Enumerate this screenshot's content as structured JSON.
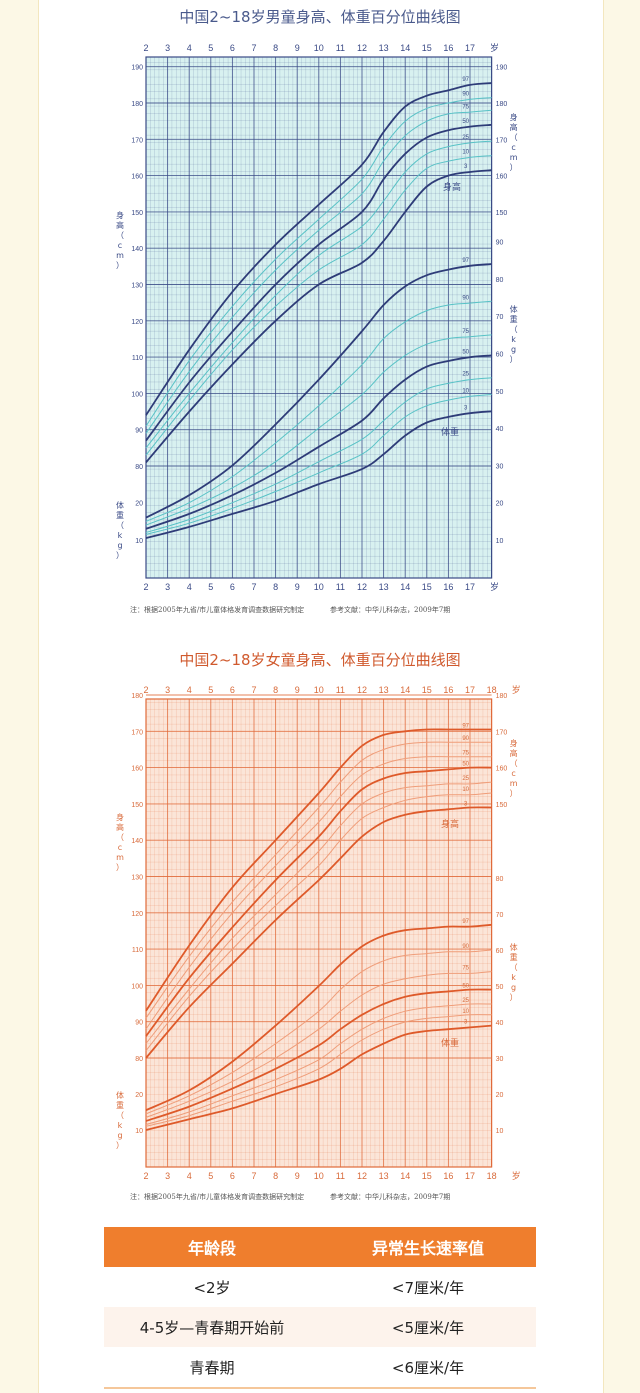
{
  "boy_chart": {
    "title": "中国2~18岁男童身高、体重百分位曲线图",
    "note": "注：根据2005年九省/市儿童体格发育调查数据研究制定",
    "reference": "参考文献：中华儿科杂志，2009年7期",
    "colors": {
      "bg": "#d8f1f0",
      "grid": "#3a4a86",
      "major": "#2e3c78",
      "minor_curve": "#58c2c6",
      "text": "#3a4a86"
    },
    "height_label": "身高",
    "weight_label": "体重",
    "axis_height_label": "身高（cm）",
    "axis_weight_label": "体重（kg）",
    "age_unit": "岁"
  },
  "girl_chart": {
    "title": "中国2~18岁女童身高、体重百分位曲线图",
    "note": "注：根据2005年九省/市儿童体格发育调查数据研究制定",
    "reference": "参考文献：中华儿科杂志，2009年7期",
    "colors": {
      "bg": "#fbe5d8",
      "grid": "#e06a3a",
      "major": "#de5a2a",
      "minor_curve": "#ef9d79",
      "text": "#d86a3a"
    },
    "height_label": "身高",
    "weight_label": "体重",
    "axis_height_label": "身高（cm）",
    "axis_weight_label": "体重（kg）",
    "age_unit": "岁"
  },
  "chart_data": [
    {
      "type": "line",
      "title": "中国2~18岁男童身高、体重百分位曲线图",
      "x_ticks": [
        2,
        3,
        4,
        5,
        6,
        7,
        8,
        9,
        10,
        11,
        12,
        13,
        14,
        15,
        16,
        17
      ],
      "xlim": [
        2,
        18
      ],
      "height_ylim": [
        76,
        190
      ],
      "height_ticks": [
        80,
        90,
        100,
        110,
        120,
        130,
        140,
        150,
        160,
        170,
        180,
        190
      ],
      "weight_ticks": [
        10,
        20,
        30,
        40,
        50,
        60,
        70,
        80,
        90
      ],
      "percentile_labels": [
        "97",
        "90",
        "75",
        "50",
        "25",
        "10",
        "3"
      ],
      "x": [
        2,
        4,
        6,
        8,
        10,
        12,
        13,
        14,
        15,
        16,
        17,
        18
      ],
      "height_series": [
        {
          "name": "97",
          "values": [
            94,
            112,
            128,
            141,
            152,
            163,
            172,
            179,
            182,
            183.5,
            185,
            185.5
          ]
        },
        {
          "name": "90",
          "values": [
            91,
            109,
            124,
            137,
            148,
            159,
            168,
            175,
            178.5,
            180,
            181,
            181.5
          ]
        },
        {
          "name": "75",
          "values": [
            89,
            106,
            121,
            134,
            145,
            155,
            164,
            171,
            175,
            177,
            177.5,
            178
          ]
        },
        {
          "name": "50",
          "values": [
            87,
            103,
            117,
            130,
            141,
            150,
            159,
            166,
            170.5,
            172.5,
            173.5,
            174
          ]
        },
        {
          "name": "25",
          "values": [
            85,
            100,
            114,
            127,
            138,
            146,
            153,
            161,
            166,
            168,
            169,
            169.5
          ]
        },
        {
          "name": "10",
          "values": [
            83,
            98,
            112,
            124,
            134,
            141,
            148,
            156,
            162,
            164,
            165,
            165.5
          ]
        },
        {
          "name": "3",
          "values": [
            81,
            95,
            108,
            120,
            130,
            136,
            142,
            150,
            157,
            160,
            161,
            161.5
          ]
        }
      ],
      "weight_series": [
        {
          "name": "97",
          "values": [
            16,
            22,
            30,
            41,
            53,
            66,
            73,
            78,
            81,
            82.5,
            83.5,
            84
          ]
        },
        {
          "name": "90",
          "values": [
            15,
            20,
            27,
            36,
            46,
            57,
            64,
            68.5,
            71.5,
            73,
            73.5,
            74
          ]
        },
        {
          "name": "75",
          "values": [
            14,
            18.5,
            24,
            31,
            40,
            49,
            55,
            59.5,
            62.5,
            64,
            64.5,
            65
          ]
        },
        {
          "name": "50",
          "values": [
            13,
            17,
            22,
            28,
            35,
            42,
            48,
            53,
            56.5,
            58,
            59,
            59.5
          ]
        },
        {
          "name": "25",
          "values": [
            12,
            15.5,
            20,
            25,
            31,
            37,
            42,
            47,
            50.5,
            52,
            53,
            53.5
          ]
        },
        {
          "name": "10",
          "values": [
            11.5,
            14.5,
            18.5,
            23,
            28,
            33,
            38,
            43,
            46,
            47.5,
            48.5,
            49
          ]
        },
        {
          "name": "3",
          "values": [
            10.5,
            13.5,
            17,
            20.5,
            25,
            29,
            33,
            38,
            41.5,
            43,
            44,
            44.5
          ]
        }
      ]
    },
    {
      "type": "line",
      "title": "中国2~18岁女童身高、体重百分位曲线图",
      "x_ticks": [
        2,
        3,
        4,
        5,
        6,
        7,
        8,
        9,
        10,
        11,
        12,
        13,
        14,
        15,
        16,
        17,
        18
      ],
      "xlim": [
        2,
        18
      ],
      "height_ylim": [
        76,
        180
      ],
      "height_ticks": [
        80,
        90,
        100,
        110,
        120,
        130,
        140,
        150,
        160,
        170,
        180
      ],
      "weight_ticks": [
        10,
        20,
        30,
        40,
        50,
        60,
        70,
        80
      ],
      "percentile_labels": [
        "97",
        "90",
        "75",
        "50",
        "25",
        "10",
        "3"
      ],
      "x": [
        2,
        4,
        6,
        8,
        10,
        11,
        12,
        13,
        14,
        15,
        16,
        17,
        18
      ],
      "height_series": [
        {
          "name": "97",
          "values": [
            93,
            111,
            127,
            140,
            153,
            160,
            166,
            169,
            170,
            170.5,
            170.5,
            170.5,
            170.5
          ]
        },
        {
          "name": "90",
          "values": [
            91,
            108,
            123,
            136,
            149,
            156,
            162,
            165,
            166.5,
            167,
            167,
            167,
            167
          ]
        },
        {
          "name": "75",
          "values": [
            88,
            105,
            120,
            133,
            145,
            152,
            158,
            161,
            162.5,
            163,
            163,
            163,
            163
          ]
        },
        {
          "name": "50",
          "values": [
            86,
            102,
            116,
            129,
            141,
            148,
            154,
            157,
            158.5,
            159,
            159.5,
            160,
            160
          ]
        },
        {
          "name": "25",
          "values": [
            84,
            99,
            113,
            125,
            137,
            144,
            150,
            153,
            154.5,
            155,
            155.5,
            155.5,
            156
          ]
        },
        {
          "name": "10",
          "values": [
            82,
            97,
            110,
            122,
            133,
            140,
            146,
            149,
            151,
            152,
            152.5,
            152.5,
            153
          ]
        },
        {
          "name": "3",
          "values": [
            80,
            94,
            106,
            118,
            129,
            135,
            141,
            145,
            147,
            148,
            148.5,
            149,
            149
          ]
        }
      ],
      "weight_series": [
        {
          "name": "97",
          "values": [
            15.5,
            21,
            29,
            39,
            50,
            56,
            61,
            64,
            65.5,
            66,
            66.5,
            66.5,
            67
          ]
        },
        {
          "name": "90",
          "values": [
            14.5,
            19.5,
            26,
            34,
            43,
            49,
            54,
            57,
            58.5,
            59,
            59.5,
            59.5,
            60
          ]
        },
        {
          "name": "75",
          "values": [
            13.5,
            18,
            23.5,
            30,
            38,
            43,
            47.5,
            50.5,
            52,
            53,
            53.5,
            53.5,
            54
          ]
        },
        {
          "name": "50",
          "values": [
            12.5,
            16.5,
            21.5,
            27,
            33.5,
            38,
            42,
            45,
            47,
            48,
            48.5,
            49,
            49
          ]
        },
        {
          "name": "25",
          "values": [
            11.5,
            15,
            19.5,
            24,
            29.5,
            34,
            38,
            41,
            43,
            44,
            44.5,
            45,
            45
          ]
        },
        {
          "name": "10",
          "values": [
            11,
            14,
            18,
            22,
            27,
            31,
            35,
            38,
            40,
            41,
            41.5,
            42,
            42
          ]
        },
        {
          "name": "3",
          "values": [
            10,
            13,
            16,
            20,
            24,
            27,
            31,
            34,
            36.5,
            37.5,
            38,
            38.5,
            39
          ]
        }
      ]
    },
    {
      "type": "table",
      "columns": [
        "年龄段",
        "异常生长速率值"
      ],
      "rows": [
        [
          "<2岁",
          "<7厘米/年"
        ],
        [
          "4-5岁—青春期开始前",
          "<5厘米/年"
        ],
        [
          "青春期",
          "<6厘米/年"
        ]
      ]
    }
  ],
  "table": {
    "headers": [
      "年龄段",
      "异常生长速率值"
    ],
    "rows": [
      {
        "age": "<2岁",
        "rate": "<7厘米/年"
      },
      {
        "age": "4-5岁—青春期开始前",
        "rate": "<5厘米/年"
      },
      {
        "age": "青春期",
        "rate": "<6厘米/年"
      }
    ]
  }
}
